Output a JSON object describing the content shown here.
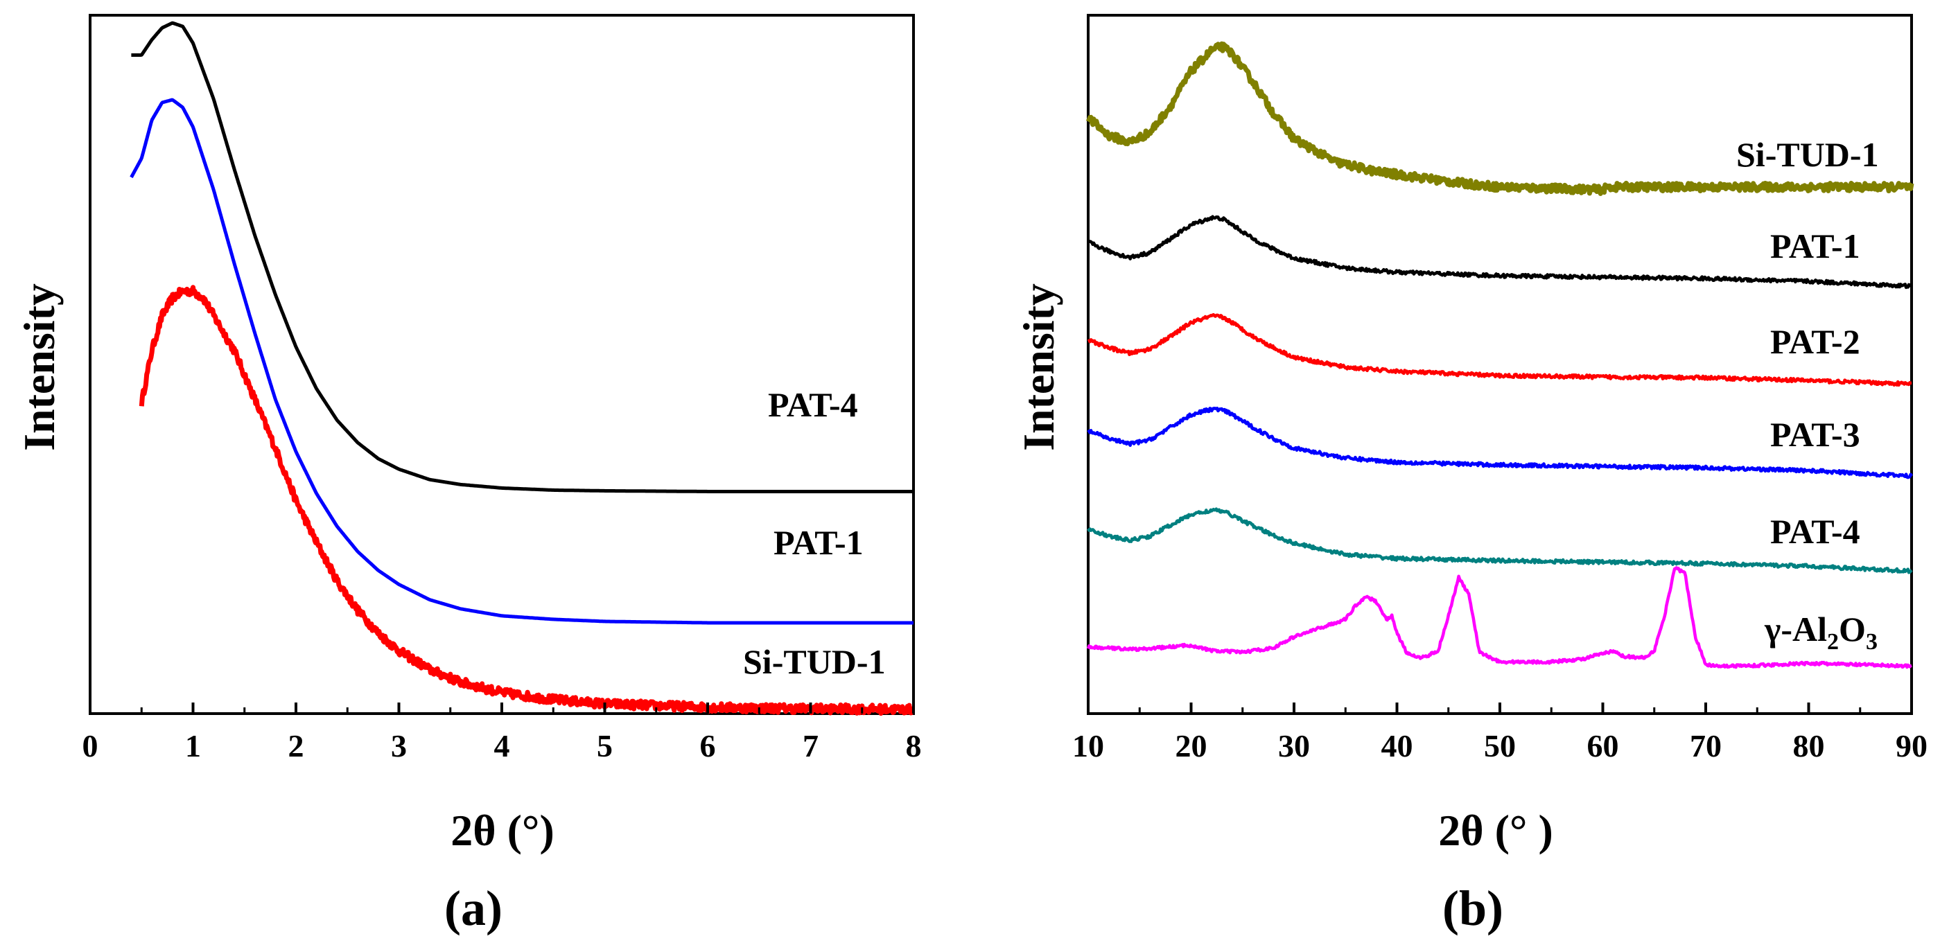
{
  "chart_data": [
    {
      "type": "line",
      "panel_label": "(a)",
      "xlabel": "2θ (°)",
      "ylabel": "Intensity",
      "xlim": [
        0,
        8
      ],
      "ylim": [
        0,
        100
      ],
      "xticks": [
        0,
        1,
        2,
        3,
        4,
        5,
        6,
        7,
        8
      ],
      "grid": false,
      "series": [
        {
          "name": "PAT-4",
          "color": "#000000",
          "x": [
            0.4,
            0.5,
            0.6,
            0.7,
            0.8,
            0.9,
            1.0,
            1.2,
            1.4,
            1.6,
            1.8,
            2.0,
            2.2,
            2.4,
            2.6,
            2.8,
            3.0,
            3.3,
            3.6,
            4.0,
            4.5,
            5.0,
            6.0,
            7.0,
            8.0
          ],
          "y": [
            94.3,
            94.3,
            96.5,
            98.2,
            98.9,
            98.4,
            96.0,
            88.0,
            78.0,
            68.5,
            60.0,
            52.5,
            46.5,
            42.0,
            38.8,
            36.5,
            35.0,
            33.5,
            32.8,
            32.3,
            32.0,
            31.9,
            31.8,
            31.8,
            31.8
          ],
          "noise": 0
        },
        {
          "name": "PAT-1",
          "color": "#0000ff",
          "x": [
            0.4,
            0.5,
            0.6,
            0.7,
            0.8,
            0.9,
            1.0,
            1.2,
            1.4,
            1.6,
            1.8,
            2.0,
            2.2,
            2.4,
            2.6,
            2.8,
            3.0,
            3.3,
            3.6,
            4.0,
            4.5,
            5.0,
            6.0,
            7.0,
            8.0
          ],
          "y": [
            76.8,
            79.5,
            85.0,
            87.5,
            87.9,
            86.8,
            84.0,
            75.0,
            64.5,
            54.5,
            45.0,
            37.5,
            31.5,
            26.8,
            23.2,
            20.5,
            18.5,
            16.3,
            15.0,
            14.0,
            13.5,
            13.2,
            13.0,
            13.0,
            13.0
          ],
          "noise": 0
        },
        {
          "name": "Si-TUD-1",
          "color": "#ff0000",
          "x": [
            0.5,
            0.6,
            0.7,
            0.8,
            0.9,
            1.0,
            1.1,
            1.2,
            1.4,
            1.6,
            1.8,
            2.0,
            2.2,
            2.4,
            2.6,
            2.8,
            3.0,
            3.3,
            3.6,
            4.0,
            4.5,
            5.0,
            6.0,
            7.0,
            8.0
          ],
          "y": [
            44.5,
            52.0,
            57.0,
            59.5,
            60.5,
            60.5,
            59.5,
            57.0,
            52.0,
            45.0,
            38.0,
            30.5,
            24.5,
            19.0,
            14.8,
            11.5,
            9.0,
            6.3,
            4.5,
            3.0,
            2.0,
            1.4,
            0.9,
            0.7,
            0.6
          ],
          "noise": 0.6
        }
      ]
    },
    {
      "type": "line",
      "panel_label": "(b)",
      "xlabel": "2θ (° )",
      "ylabel": "Intensity",
      "xlim": [
        10,
        90
      ],
      "ylim": [
        0,
        100
      ],
      "xticks": [
        10,
        20,
        30,
        40,
        50,
        60,
        70,
        80,
        90
      ],
      "grid": false,
      "series": [
        {
          "name": "Si-TUD-1",
          "color": "#808000",
          "x": [
            10,
            12,
            14,
            16,
            18,
            20,
            22,
            23,
            24,
            26,
            28,
            30,
            34,
            38,
            42,
            46,
            50,
            55,
            60,
            60.5,
            70,
            80,
            90
          ],
          "y": [
            85.3,
            82.8,
            81.8,
            83.2,
            87.0,
            92.0,
            95.0,
            95.5,
            94.5,
            90.5,
            86.0,
            82.3,
            79.0,
            77.6,
            76.8,
            76.0,
            75.4,
            75.2,
            75.0,
            75.4,
            75.4,
            75.4,
            75.4
          ],
          "noise": 0.55
        },
        {
          "name": "PAT-1",
          "color": "#000000",
          "x": [
            10,
            12,
            14,
            16,
            18,
            20,
            22,
            23,
            24,
            26,
            28,
            30,
            35,
            40,
            50,
            60,
            70,
            80,
            90
          ],
          "y": [
            67.5,
            66.2,
            65.3,
            66.0,
            68.0,
            70.0,
            71.0,
            70.9,
            70.0,
            68.0,
            66.5,
            65.2,
            63.8,
            63.2,
            62.7,
            62.5,
            62.3,
            61.9,
            61.2
          ],
          "noise": 0.25
        },
        {
          "name": "PAT-2",
          "color": "#ff0000",
          "x": [
            10,
            12,
            14,
            16,
            18,
            20,
            22,
            23,
            24,
            26,
            28,
            30,
            35,
            40,
            50,
            60,
            70,
            80,
            90
          ],
          "y": [
            53.5,
            52.4,
            51.6,
            52.2,
            54.0,
            56.0,
            56.9,
            56.8,
            56.0,
            54.0,
            52.4,
            51.0,
            49.6,
            49.0,
            48.4,
            48.2,
            48.1,
            47.7,
            47.2
          ],
          "noise": 0.25
        },
        {
          "name": "PAT-3",
          "color": "#0000ff",
          "x": [
            10,
            12,
            14,
            16,
            18,
            20,
            22,
            23,
            24,
            26,
            28,
            30,
            35,
            40,
            50,
            60,
            70,
            80,
            90
          ],
          "y": [
            40.5,
            39.4,
            38.6,
            39.2,
            41.0,
            42.8,
            43.6,
            43.5,
            42.8,
            41.0,
            39.4,
            38.0,
            36.6,
            36.0,
            35.6,
            35.4,
            35.2,
            34.8,
            34.0
          ],
          "noise": 0.25
        },
        {
          "name": "PAT-4",
          "color": "#008080",
          "x": [
            10,
            12,
            14,
            16,
            18,
            20,
            22,
            23,
            24,
            26,
            28,
            30,
            35,
            40,
            50,
            60,
            70,
            80,
            90
          ],
          "y": [
            26.5,
            25.4,
            24.8,
            25.4,
            27.0,
            28.5,
            29.1,
            29.0,
            28.4,
            26.9,
            25.5,
            24.4,
            22.8,
            22.2,
            21.9,
            21.7,
            21.5,
            21.1,
            20.4
          ],
          "noise": 0.25
        },
        {
          "name": "γ-Al2O3",
          "color": "#ff00ff",
          "x": [
            10,
            15,
            20,
            22,
            25,
            28,
            30,
            33,
            35,
            36,
            37,
            38,
            39,
            39.5,
            40,
            41,
            42,
            43,
            44,
            45,
            46,
            47,
            48,
            50,
            55,
            58,
            60,
            61,
            62,
            64,
            65,
            66,
            67,
            68,
            69,
            70,
            72,
            75,
            80,
            85,
            90
          ],
          "y": [
            9.5,
            9.2,
            9.8,
            9.0,
            8.8,
            9.4,
            11.0,
            12.5,
            13.5,
            15.5,
            16.8,
            16.0,
            13.5,
            14.0,
            11.5,
            8.6,
            8.0,
            8.3,
            9.0,
            14.0,
            19.5,
            17.0,
            8.8,
            7.4,
            7.4,
            7.8,
            8.6,
            8.9,
            8.2,
            8.0,
            9.0,
            14.0,
            21.0,
            20.0,
            11.0,
            7.0,
            6.8,
            6.9,
            7.2,
            7.0,
            6.8
          ],
          "noise": 0.2
        }
      ]
    }
  ],
  "labels_a": {
    "pat4": "PAT-4",
    "pat1": "PAT-1",
    "situd1": "Si-TUD-1"
  },
  "labels_b": {
    "situd1": "Si-TUD-1",
    "pat1": "PAT-1",
    "pat2": "PAT-2",
    "pat3": "PAT-3",
    "pat4": "PAT-4",
    "alumina_prefix": "γ-Al",
    "alumina_sub1": "2",
    "alumina_mid": "O",
    "alumina_sub2": "3"
  }
}
